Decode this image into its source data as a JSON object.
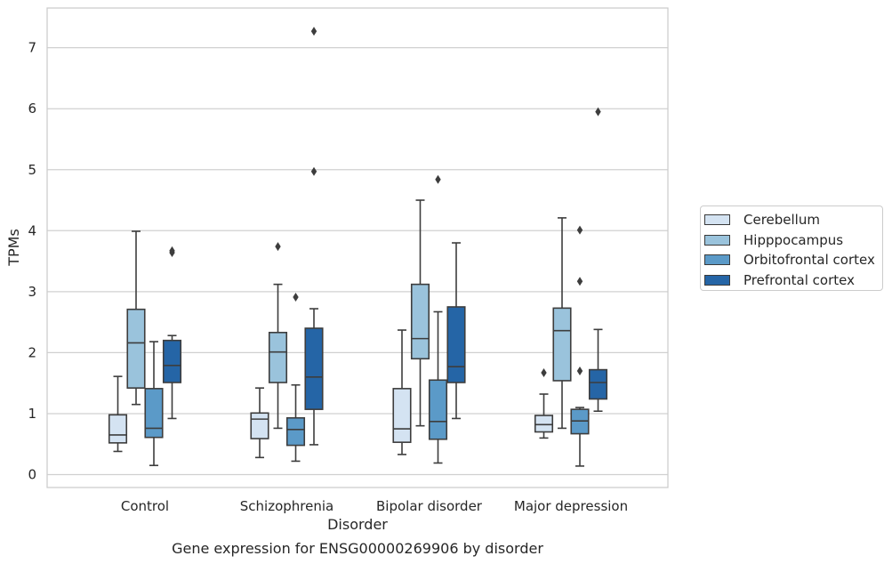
{
  "chart_data": {
    "type": "box",
    "title": "Gene expression for ENSG00000269906 by disorder",
    "xlabel": "Disorder",
    "ylabel": "TPMs",
    "ylim": [
      -0.2,
      7.65
    ],
    "yticks": [
      0,
      1,
      2,
      3,
      4,
      5,
      6,
      7
    ],
    "grid": "horizontal",
    "legend_position": "right",
    "categories": [
      "Control",
      "Schizophrenia",
      "Bipolar disorder",
      "Major depression"
    ],
    "series": [
      {
        "name": "Cerebellum",
        "color": "#d4e3f2",
        "boxes": [
          {
            "whisker_low": 0.38,
            "q1": 0.52,
            "median": 0.65,
            "q3": 0.98,
            "whisker_high": 1.61,
            "outliers": []
          },
          {
            "whisker_low": 0.28,
            "q1": 0.59,
            "median": 0.91,
            "q3": 1.01,
            "whisker_high": 1.42,
            "outliers": []
          },
          {
            "whisker_low": 0.33,
            "q1": 0.53,
            "median": 0.75,
            "q3": 1.41,
            "whisker_high": 2.37,
            "outliers": []
          },
          {
            "whisker_low": 0.6,
            "q1": 0.7,
            "median": 0.82,
            "q3": 0.97,
            "whisker_high": 1.32,
            "outliers": [
              1.67
            ]
          }
        ]
      },
      {
        "name": "Hipppocampus",
        "color": "#9ac3dc",
        "boxes": [
          {
            "whisker_low": 1.15,
            "q1": 1.42,
            "median": 2.16,
            "q3": 2.71,
            "whisker_high": 3.99,
            "outliers": []
          },
          {
            "whisker_low": 0.76,
            "q1": 1.51,
            "median": 2.01,
            "q3": 2.33,
            "whisker_high": 3.12,
            "outliers": [
              3.74
            ]
          },
          {
            "whisker_low": 0.8,
            "q1": 1.9,
            "median": 2.23,
            "q3": 3.12,
            "whisker_high": 4.5,
            "outliers": []
          },
          {
            "whisker_low": 0.76,
            "q1": 1.54,
            "median": 2.36,
            "q3": 2.73,
            "whisker_high": 4.21,
            "outliers": []
          }
        ]
      },
      {
        "name": "Orbitofrontal cortex",
        "color": "#5b9ac8",
        "boxes": [
          {
            "whisker_low": 0.15,
            "q1": 0.61,
            "median": 0.76,
            "q3": 1.41,
            "whisker_high": 2.18,
            "outliers": []
          },
          {
            "whisker_low": 0.22,
            "q1": 0.48,
            "median": 0.74,
            "q3": 0.93,
            "whisker_high": 1.47,
            "outliers": [
              2.91
            ]
          },
          {
            "whisker_low": 0.19,
            "q1": 0.58,
            "median": 0.87,
            "q3": 1.55,
            "whisker_high": 2.67,
            "outliers": [
              4.84
            ]
          },
          {
            "whisker_low": 0.14,
            "q1": 0.67,
            "median": 0.88,
            "q3": 1.07,
            "whisker_high": 1.1,
            "outliers": [
              1.7,
              3.17,
              4.01
            ]
          }
        ]
      },
      {
        "name": "Prefrontal cortex",
        "color": "#2565a6",
        "boxes": [
          {
            "whisker_low": 0.92,
            "q1": 1.51,
            "median": 1.79,
            "q3": 2.2,
            "whisker_high": 2.28,
            "outliers": [
              3.64,
              3.67
            ]
          },
          {
            "whisker_low": 0.49,
            "q1": 1.07,
            "median": 1.6,
            "q3": 2.4,
            "whisker_high": 2.72,
            "outliers": [
              4.97,
              7.27
            ]
          },
          {
            "whisker_low": 0.92,
            "q1": 1.51,
            "median": 1.77,
            "q3": 2.75,
            "whisker_high": 3.8,
            "outliers": []
          },
          {
            "whisker_low": 1.04,
            "q1": 1.24,
            "median": 1.51,
            "q3": 1.72,
            "whisker_high": 2.38,
            "outliers": [
              5.95
            ]
          }
        ]
      }
    ]
  }
}
